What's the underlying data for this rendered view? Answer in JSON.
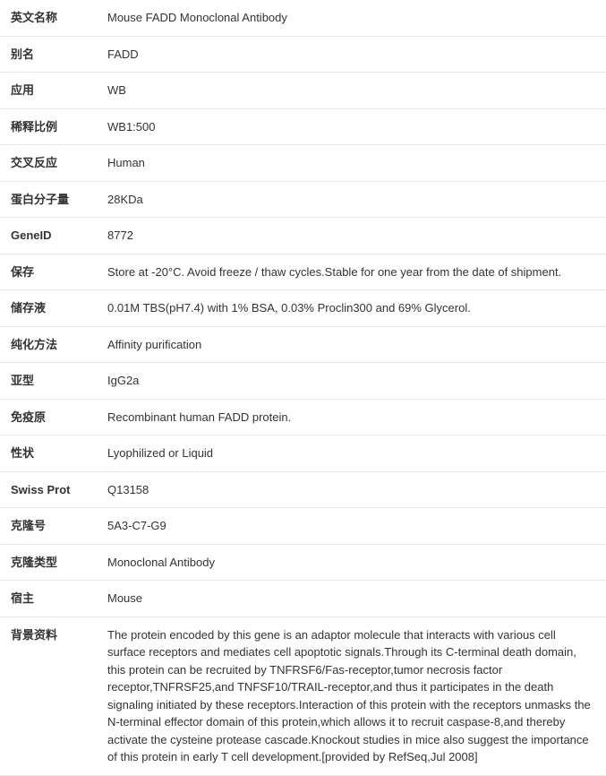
{
  "table": {
    "background_color": "#ffffff",
    "border_color": "#e8e8e8",
    "text_color": "#333333",
    "font_size": 13,
    "label_width": 108,
    "rows": [
      {
        "label": "英文名称",
        "value": "Mouse FADD Monoclonal Antibody"
      },
      {
        "label": "别名",
        "value": "FADD"
      },
      {
        "label": "应用",
        "value": "WB"
      },
      {
        "label": "稀释比例",
        "value": "WB1:500"
      },
      {
        "label": "交叉反应",
        "value": "Human"
      },
      {
        "label": "蛋白分子量",
        "value": "28KDa"
      },
      {
        "label": "GeneID",
        "value": "8772"
      },
      {
        "label": "保存",
        "value": "Store at -20°C. Avoid freeze / thaw cycles.Stable for one year from the date of shipment."
      },
      {
        "label": "储存液",
        "value": "0.01M TBS(pH7.4) with 1% BSA, 0.03% Proclin300 and 69% Glycerol."
      },
      {
        "label": "纯化方法",
        "value": "Affinity purification"
      },
      {
        "label": "亚型",
        "value": "IgG2a"
      },
      {
        "label": "免疫原",
        "value": "Recombinant human FADD protein."
      },
      {
        "label": "性状",
        "value": "Lyophilized or Liquid"
      },
      {
        "label": "Swiss Prot",
        "value": "Q13158"
      },
      {
        "label": "克隆号",
        "value": "5A3-C7-G9"
      },
      {
        "label": "克隆类型",
        "value": "Monoclonal Antibody"
      },
      {
        "label": "宿主",
        "value": "Mouse"
      },
      {
        "label": "背景资料",
        "value": "The protein encoded by this gene is an adaptor molecule that interacts with various cell surface receptors and mediates cell apoptotic signals.Through its C-terminal death domain, this protein can be recruited by TNFRSF6/Fas-receptor,tumor necrosis factor receptor,TNFRSF25,and TNFSF10/TRAIL-receptor,and thus it participates in the death signaling initiated by these receptors.Interaction of this protein with the receptors unmasks the N-terminal effector domain of this protein,which allows it to recruit caspase-8,and thereby activate the cysteine protease cascade.Knockout studies in mice also suggest the importance of this protein in early T cell development.[provided by RefSeq,Jul 2008]"
      }
    ]
  }
}
